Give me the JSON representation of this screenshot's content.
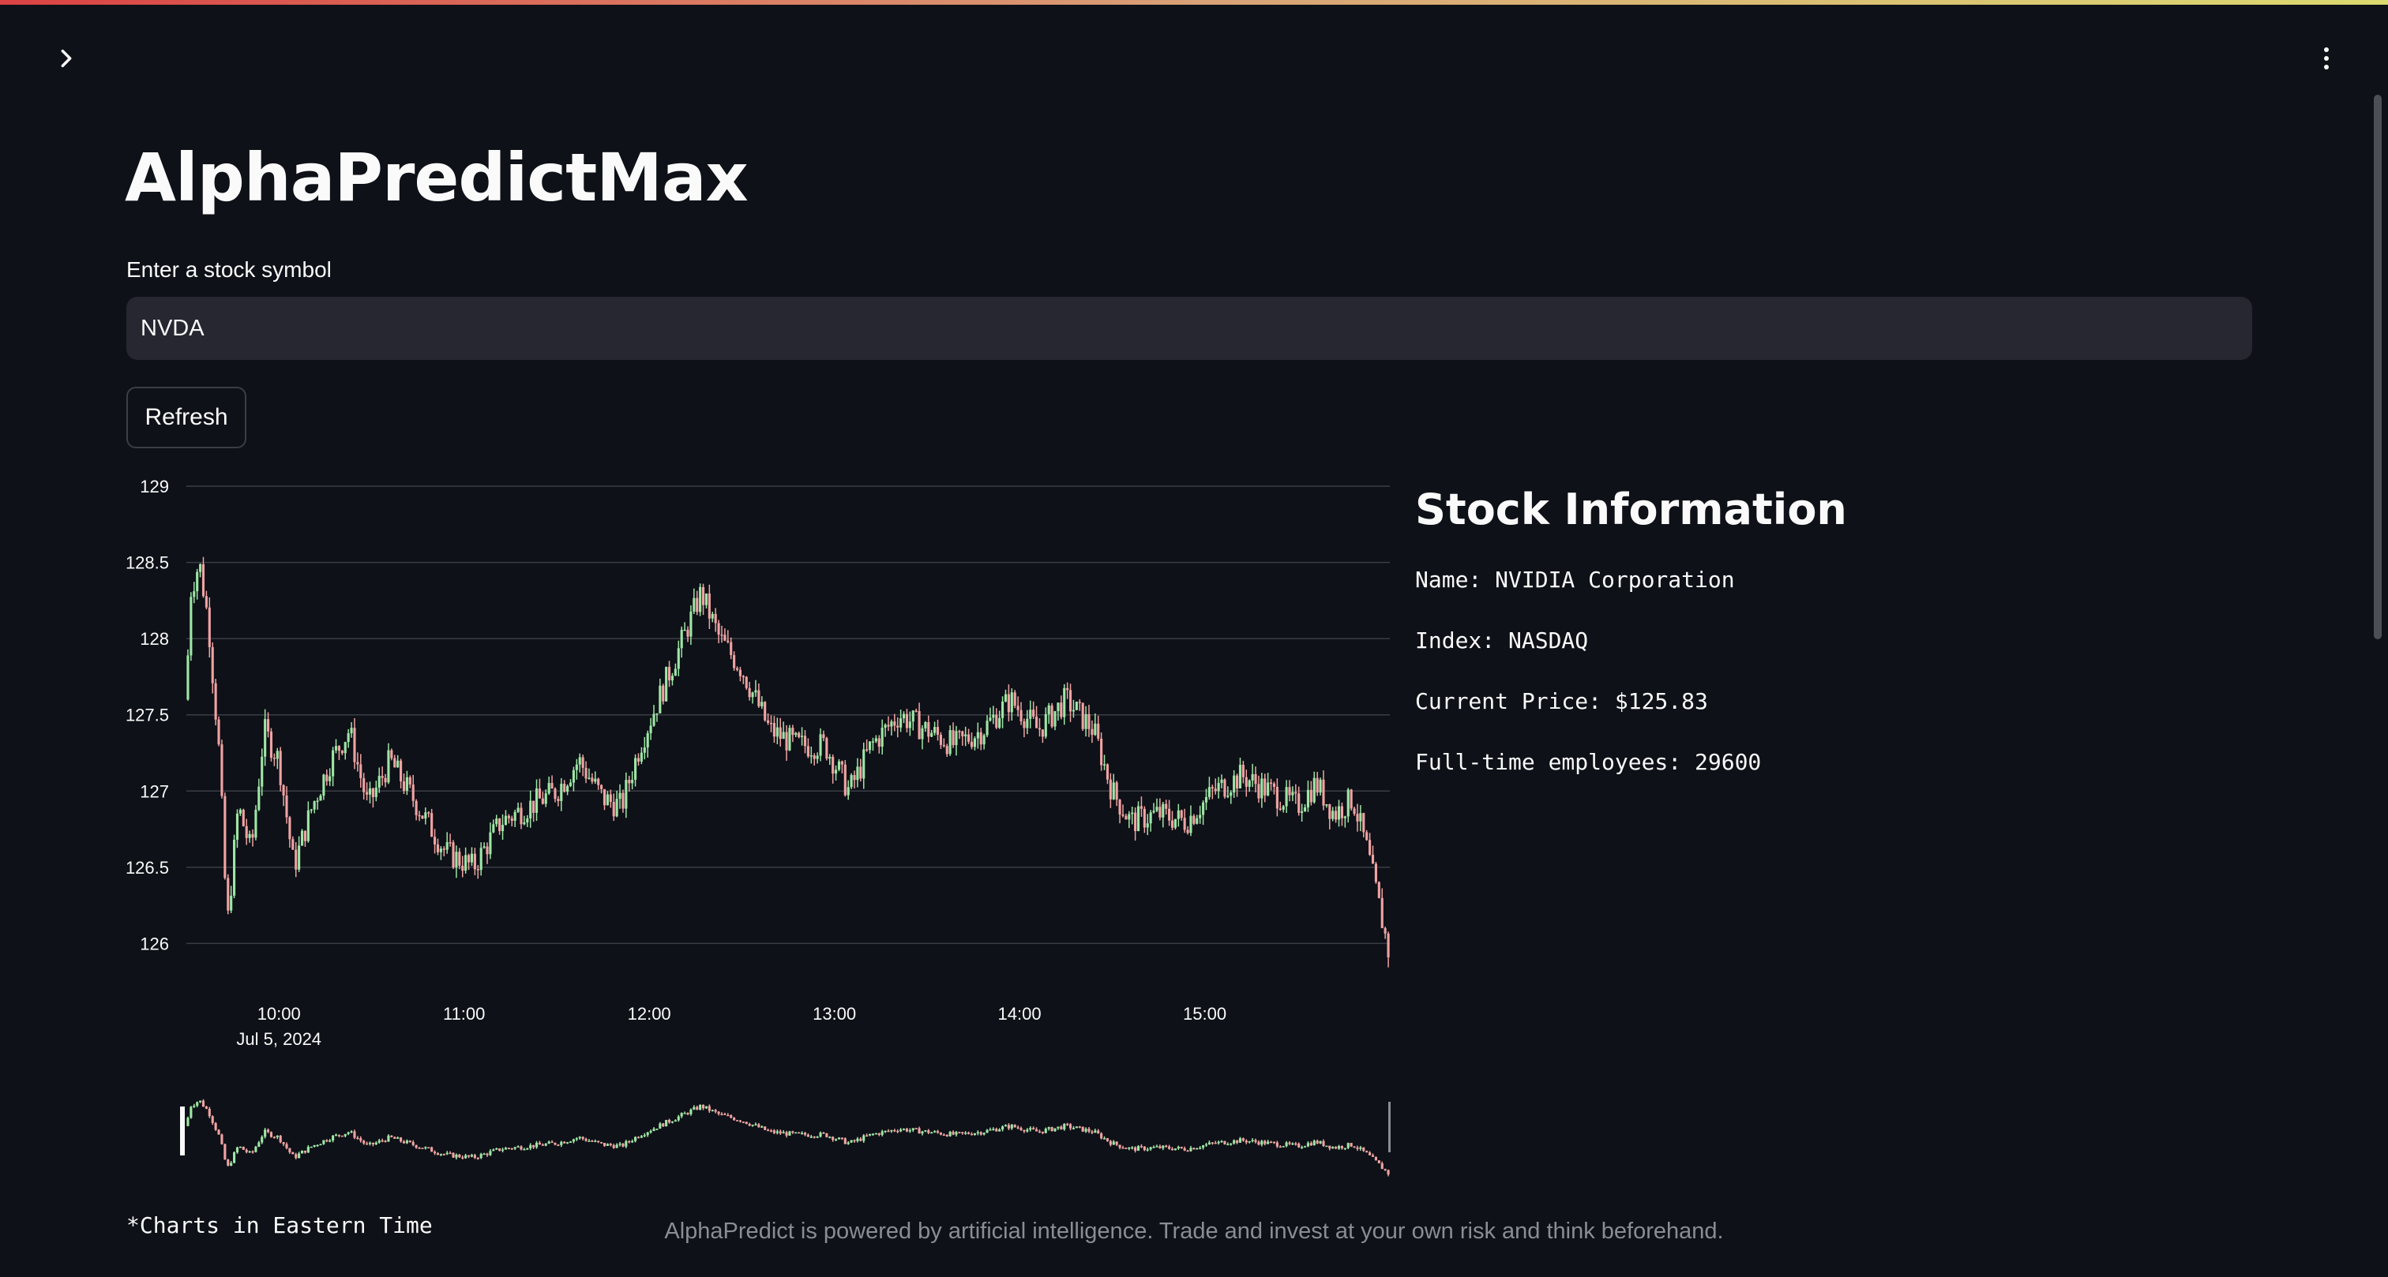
{
  "app": {
    "title": "AlphaPredictMax",
    "accent_gradient": [
      "#ff4b4b",
      "#fdbb88",
      "#fffd80"
    ],
    "background": "#0e1117"
  },
  "toolbar": {
    "sidebar_icon": "chevron-right-icon",
    "menu_icon": "kebab-menu-icon"
  },
  "form": {
    "input_label": "Enter a stock symbol",
    "input_value": "NVDA",
    "refresh_label": "Refresh"
  },
  "info": {
    "heading": "Stock Information",
    "name_line": "Name: NVIDIA Corporation",
    "index_line": "Index: NASDAQ",
    "price_line": "Current Price: $125.83",
    "employees_line": "Full-time employees: 29600"
  },
  "chart_data": {
    "type": "candlestick",
    "title": "",
    "date_label": "Jul 5, 2024",
    "x_ticks": [
      "10:00",
      "11:00",
      "12:00",
      "13:00",
      "14:00",
      "15:00"
    ],
    "y_ticks": [
      "129",
      "128.5",
      "128",
      "127.5",
      "127",
      "126.5",
      "126"
    ],
    "ylim": [
      125.8,
      129.0
    ],
    "x_range_hours": [
      9.5,
      16.0
    ],
    "up_color": "#9ee6a6",
    "down_color": "#f0a3a3",
    "price_path": [
      {
        "t": 9.5,
        "p": 127.6
      },
      {
        "t": 9.52,
        "p": 128.3
      },
      {
        "t": 9.57,
        "p": 128.5
      },
      {
        "t": 9.62,
        "p": 128.1
      },
      {
        "t": 9.68,
        "p": 127.2
      },
      {
        "t": 9.72,
        "p": 126.1
      },
      {
        "t": 9.78,
        "p": 126.9
      },
      {
        "t": 9.85,
        "p": 126.6
      },
      {
        "t": 9.92,
        "p": 127.4
      },
      {
        "t": 10.0,
        "p": 127.2
      },
      {
        "t": 10.08,
        "p": 126.5
      },
      {
        "t": 10.18,
        "p": 126.9
      },
      {
        "t": 10.28,
        "p": 127.2
      },
      {
        "t": 10.38,
        "p": 127.4
      },
      {
        "t": 10.48,
        "p": 126.9
      },
      {
        "t": 10.6,
        "p": 127.2
      },
      {
        "t": 10.75,
        "p": 126.9
      },
      {
        "t": 10.9,
        "p": 126.6
      },
      {
        "t": 11.05,
        "p": 126.5
      },
      {
        "t": 11.2,
        "p": 126.8
      },
      {
        "t": 11.35,
        "p": 126.9
      },
      {
        "t": 11.5,
        "p": 127.0
      },
      {
        "t": 11.62,
        "p": 127.2
      },
      {
        "t": 11.75,
        "p": 126.95
      },
      {
        "t": 11.85,
        "p": 126.9
      },
      {
        "t": 11.95,
        "p": 127.3
      },
      {
        "t": 12.05,
        "p": 127.6
      },
      {
        "t": 12.15,
        "p": 127.9
      },
      {
        "t": 12.28,
        "p": 128.3
      },
      {
        "t": 12.38,
        "p": 128.0
      },
      {
        "t": 12.5,
        "p": 127.8
      },
      {
        "t": 12.65,
        "p": 127.4
      },
      {
        "t": 12.8,
        "p": 127.3
      },
      {
        "t": 12.95,
        "p": 127.3
      },
      {
        "t": 13.08,
        "p": 127.0
      },
      {
        "t": 13.2,
        "p": 127.3
      },
      {
        "t": 13.35,
        "p": 127.5
      },
      {
        "t": 13.5,
        "p": 127.4
      },
      {
        "t": 13.65,
        "p": 127.3
      },
      {
        "t": 13.8,
        "p": 127.4
      },
      {
        "t": 13.95,
        "p": 127.6
      },
      {
        "t": 14.1,
        "p": 127.4
      },
      {
        "t": 14.25,
        "p": 127.6
      },
      {
        "t": 14.4,
        "p": 127.4
      },
      {
        "t": 14.5,
        "p": 127.0
      },
      {
        "t": 14.6,
        "p": 126.8
      },
      {
        "t": 14.75,
        "p": 126.85
      },
      {
        "t": 14.9,
        "p": 126.8
      },
      {
        "t": 15.05,
        "p": 127.0
      },
      {
        "t": 15.2,
        "p": 127.1
      },
      {
        "t": 15.35,
        "p": 127.0
      },
      {
        "t": 15.5,
        "p": 126.9
      },
      {
        "t": 15.6,
        "p": 127.05
      },
      {
        "t": 15.7,
        "p": 126.85
      },
      {
        "t": 15.8,
        "p": 126.95
      },
      {
        "t": 15.88,
        "p": 126.6
      },
      {
        "t": 15.95,
        "p": 126.2
      },
      {
        "t": 16.0,
        "p": 125.9
      }
    ]
  },
  "footnote": "*Charts in Eastern Time",
  "footer": "AlphaPredict is powered by artificial intelligence. Trade and invest at your own risk and think beforehand."
}
